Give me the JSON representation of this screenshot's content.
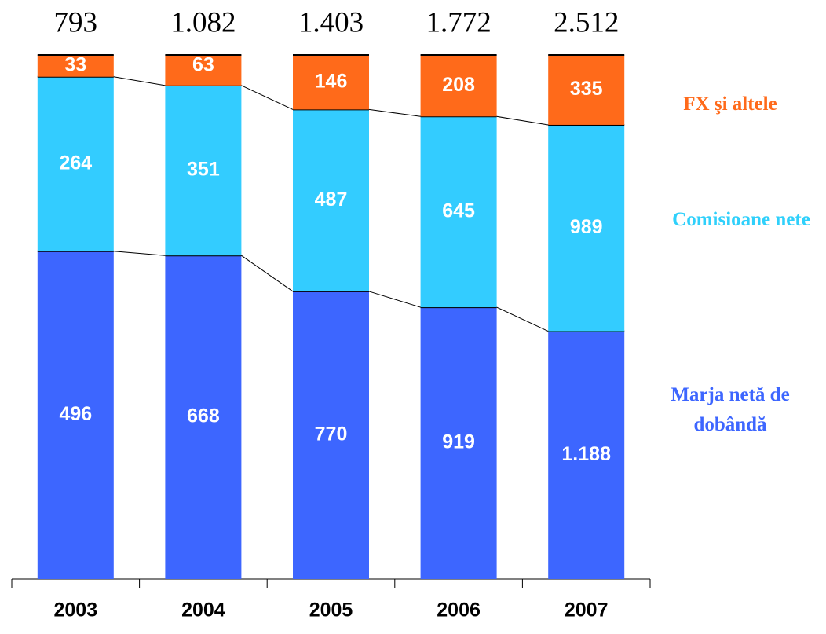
{
  "chart_data": {
    "type": "stacked_percent_bar",
    "categories": [
      "2003",
      "2004",
      "2005",
      "2006",
      "2007"
    ],
    "series": [
      {
        "name": "Marja netă de dobândă",
        "color": "#3d66ff",
        "values": [
          496,
          668,
          770,
          919,
          1188
        ],
        "value_labels": [
          "496",
          "668",
          "770",
          "919",
          "1.188"
        ]
      },
      {
        "name": "Comisioane nete",
        "color": "#33ccff",
        "values": [
          264,
          351,
          487,
          645,
          989
        ]
      },
      {
        "name": "FX şi altele",
        "color": "#ff6a1a",
        "values": [
          33,
          63,
          146,
          208,
          335
        ]
      }
    ],
    "totals": [
      793,
      1082,
      1403,
      1772,
      2512
    ],
    "total_labels": [
      "793",
      "1.082",
      "1.403",
      "1.772",
      "2.512"
    ]
  }
}
